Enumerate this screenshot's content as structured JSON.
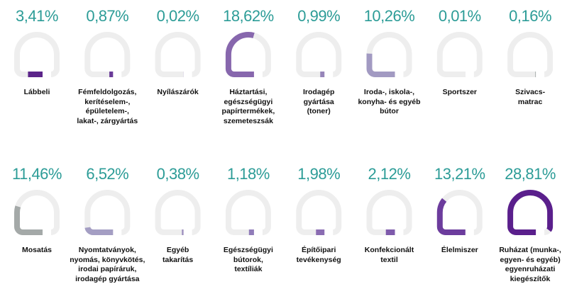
{
  "chart_data": {
    "type": "gauge",
    "categories": [
      "Lábbeli",
      "Fémfeldolgozás,\nkerítéselem-,\népületelem-,\nlakat-, zárgyártás",
      "Nyílászárók",
      "Háztartási,\negészségügyi\npapírtermékek,\nszemeteszsák",
      "Irodagép\ngyártása\n(toner)",
      "Iroda-, iskola-,\nkonyha- és egyéb\nbútor",
      "Sportszer",
      "Szivacs-\nmatrac",
      "Mosatás",
      "Nyomtatványok,\nnyomás, könyvkötés,\nirodai papíráruk,\nirodagép gyártása",
      "Egyéb\ntakarítás",
      "Egészségügyi\nbútorok,\ntextíliák",
      "Építőipari\ntevékenység",
      "Konfekcionált\ntextil",
      "Élelmiszer",
      "Ruházat (munka-,\negyen- és egyéb)\negyenruházati\nkiegészítők"
    ],
    "values": [
      3.41,
      0.87,
      0.02,
      18.62,
      0.99,
      10.26,
      0.01,
      0.16,
      11.46,
      6.52,
      0.38,
      1.18,
      1.98,
      2.12,
      13.21,
      28.81
    ],
    "value_labels": [
      "3,41%",
      "0,87%",
      "0,02%",
      "18,62%",
      "0,99%",
      "10,26%",
      "0,01%",
      "0,16%",
      "11,46%",
      "6,52%",
      "0,38%",
      "1,18%",
      "1,98%",
      "2,12%",
      "13,21%",
      "28,81%"
    ],
    "colors": [
      "#5b2489",
      "#6a3b98",
      "#7a55a4",
      "#8767ad",
      "#9685b9",
      "#a29ac2",
      "#b1aec8",
      "#a7adac",
      "#a4a9a8",
      "#a49ec3",
      "#9b8dbe",
      "#917cb9",
      "#8a6cb2",
      "#7e5aab",
      "#6c3c9d",
      "#5a1f8c"
    ],
    "ylim": [
      0,
      30
    ]
  }
}
